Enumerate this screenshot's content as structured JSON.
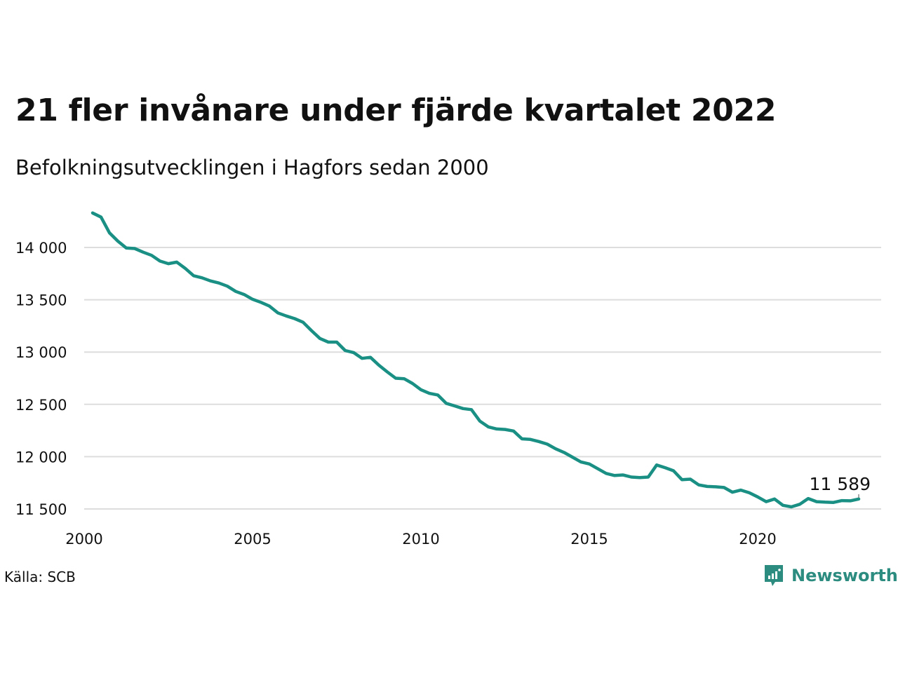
{
  "header": {
    "title": "21 fler invånare under fjärde kvartalet 2022",
    "subtitle": "Befolkningsutvecklingen i Hagfors sedan 2000"
  },
  "footer": {
    "source": "Källa: SCB",
    "brand": "Newsworthy"
  },
  "colors": {
    "line": "#1a8f84",
    "grid": "#dddddd",
    "brand": "#2c8c80"
  },
  "icons": {
    "brand_logo": "newsworthy-logo-icon"
  },
  "chart_data": {
    "type": "line",
    "title": "21 fler invånare under fjärde kvartalet 2022",
    "subtitle": "Befolkningsutvecklingen i Hagfors sedan 2000",
    "xlim": [
      2000,
      2024
    ],
    "ylim": [
      11450,
      14350
    ],
    "x_ticks": [
      2000,
      2005,
      2010,
      2015,
      2020
    ],
    "x_tick_labels": [
      "2000",
      "2005",
      "2010",
      "2015",
      "2020"
    ],
    "y_ticks": [
      11500,
      12000,
      12500,
      13000,
      13500,
      14000
    ],
    "y_tick_labels": [
      "11 500",
      "12 000",
      "12 500",
      "13 000",
      "13 500",
      "14 000"
    ],
    "grid": true,
    "series": [
      {
        "values": [
          [
            2000.25,
            14330
          ],
          [
            2000.5,
            14290
          ],
          [
            2000.75,
            14140
          ],
          [
            2001.0,
            14060
          ],
          [
            2001.25,
            13995
          ],
          [
            2001.5,
            13990
          ],
          [
            2001.75,
            13955
          ],
          [
            2002.0,
            13925
          ],
          [
            2002.25,
            13870
          ],
          [
            2002.5,
            13845
          ],
          [
            2002.75,
            13860
          ],
          [
            2003.0,
            13800
          ],
          [
            2003.25,
            13730
          ],
          [
            2003.5,
            13710
          ],
          [
            2003.75,
            13680
          ],
          [
            2004.0,
            13660
          ],
          [
            2004.25,
            13630
          ],
          [
            2004.5,
            13580
          ],
          [
            2004.75,
            13550
          ],
          [
            2005.0,
            13505
          ],
          [
            2005.25,
            13475
          ],
          [
            2005.5,
            13440
          ],
          [
            2005.75,
            13375
          ],
          [
            2006.0,
            13345
          ],
          [
            2006.25,
            13320
          ],
          [
            2006.5,
            13285
          ],
          [
            2006.75,
            13205
          ],
          [
            2007.0,
            13130
          ],
          [
            2007.25,
            13095
          ],
          [
            2007.5,
            13095
          ],
          [
            2007.75,
            13015
          ],
          [
            2008.0,
            12995
          ],
          [
            2008.25,
            12940
          ],
          [
            2008.5,
            12950
          ],
          [
            2008.75,
            12875
          ],
          [
            2009.0,
            12810
          ],
          [
            2009.25,
            12750
          ],
          [
            2009.5,
            12745
          ],
          [
            2009.75,
            12700
          ],
          [
            2010.0,
            12640
          ],
          [
            2010.25,
            12605
          ],
          [
            2010.5,
            12590
          ],
          [
            2010.75,
            12510
          ],
          [
            2011.0,
            12485
          ],
          [
            2011.25,
            12460
          ],
          [
            2011.5,
            12450
          ],
          [
            2011.75,
            12340
          ],
          [
            2012.0,
            12285
          ],
          [
            2012.25,
            12265
          ],
          [
            2012.5,
            12260
          ],
          [
            2012.75,
            12245
          ],
          [
            2013.0,
            12170
          ],
          [
            2013.25,
            12165
          ],
          [
            2013.5,
            12145
          ],
          [
            2013.75,
            12120
          ],
          [
            2014.0,
            12075
          ],
          [
            2014.25,
            12040
          ],
          [
            2014.5,
            11995
          ],
          [
            2014.75,
            11950
          ],
          [
            2015.0,
            11930
          ],
          [
            2015.25,
            11885
          ],
          [
            2015.5,
            11840
          ],
          [
            2015.75,
            11820
          ],
          [
            2016.0,
            11825
          ],
          [
            2016.25,
            11805
          ],
          [
            2016.5,
            11800
          ],
          [
            2016.75,
            11805
          ],
          [
            2017.0,
            11920
          ],
          [
            2017.25,
            11895
          ],
          [
            2017.5,
            11865
          ],
          [
            2017.75,
            11780
          ],
          [
            2018.0,
            11785
          ],
          [
            2018.25,
            11730
          ],
          [
            2018.5,
            11715
          ],
          [
            2018.75,
            11712
          ],
          [
            2019.0,
            11705
          ],
          [
            2019.25,
            11660
          ],
          [
            2019.5,
            11680
          ],
          [
            2019.75,
            11655
          ],
          [
            2020.0,
            11615
          ],
          [
            2020.25,
            11570
          ],
          [
            2020.5,
            11595
          ],
          [
            2020.75,
            11535
          ],
          [
            2021.0,
            11520
          ],
          [
            2021.25,
            11545
          ],
          [
            2021.5,
            11600
          ],
          [
            2021.75,
            11570
          ],
          [
            2022.0,
            11565
          ],
          [
            2022.25,
            11562
          ],
          [
            2022.5,
            11580
          ],
          [
            2022.75,
            11578
          ],
          [
            2023.0,
            11595
          ]
        ]
      }
    ],
    "annotations": [
      {
        "x": 2023.0,
        "y": 11589,
        "text": "11 589"
      }
    ]
  }
}
